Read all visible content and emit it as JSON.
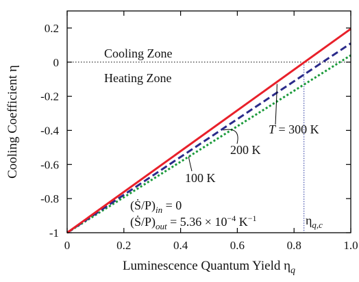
{
  "chart_data": {
    "type": "line",
    "xlabel": "Luminescence Quantum Yield η",
    "xlabel_sub": "q",
    "ylabel": "Cooling Coefficient η",
    "xlim": [
      0,
      1
    ],
    "ylim": [
      -1,
      0.3
    ],
    "x_ticks": [
      "0",
      "0.2",
      "0.4",
      "0.6",
      "0.8",
      "1.0"
    ],
    "y_ticks": [
      "-1",
      "-0.8",
      "-0.6",
      "-0.4",
      "-0.2",
      "0",
      "0.2"
    ],
    "zones": {
      "cooling": "Cooling Zone",
      "heating": "Heating Zone"
    },
    "threshold": {
      "x": 0.835,
      "label": "η",
      "label_sub": "q,c"
    },
    "grid": false,
    "series": [
      {
        "name": "T = 300 K",
        "color": "#e8202a",
        "dash": "solid",
        "x": [
          0,
          1.0
        ],
        "y": [
          -1,
          0.195
        ]
      },
      {
        "name": "200 K",
        "color": "#2a2a8a",
        "dash": "dashed",
        "x": [
          0,
          1.0
        ],
        "y": [
          -1,
          0.11
        ]
      },
      {
        "name": "100 K",
        "color": "#1a9a3a",
        "dash": "dotted",
        "x": [
          0,
          1.0
        ],
        "y": [
          -1,
          0.04
        ]
      }
    ],
    "series_labels": {
      "s300_T": "T",
      "s300_rest": " = 300 K",
      "s200": "200 K",
      "s100": "100 K"
    },
    "equations": {
      "in": {
        "lhs": "(Ṡ/P)",
        "sub": "in",
        "rhs": " = 0"
      },
      "out": {
        "lhs": "(Ṡ/P)",
        "sub": "out",
        "rhs": " = 5.36 × 10",
        "exp": "−4",
        "unit": " K",
        "unit_exp": "−1"
      }
    }
  }
}
